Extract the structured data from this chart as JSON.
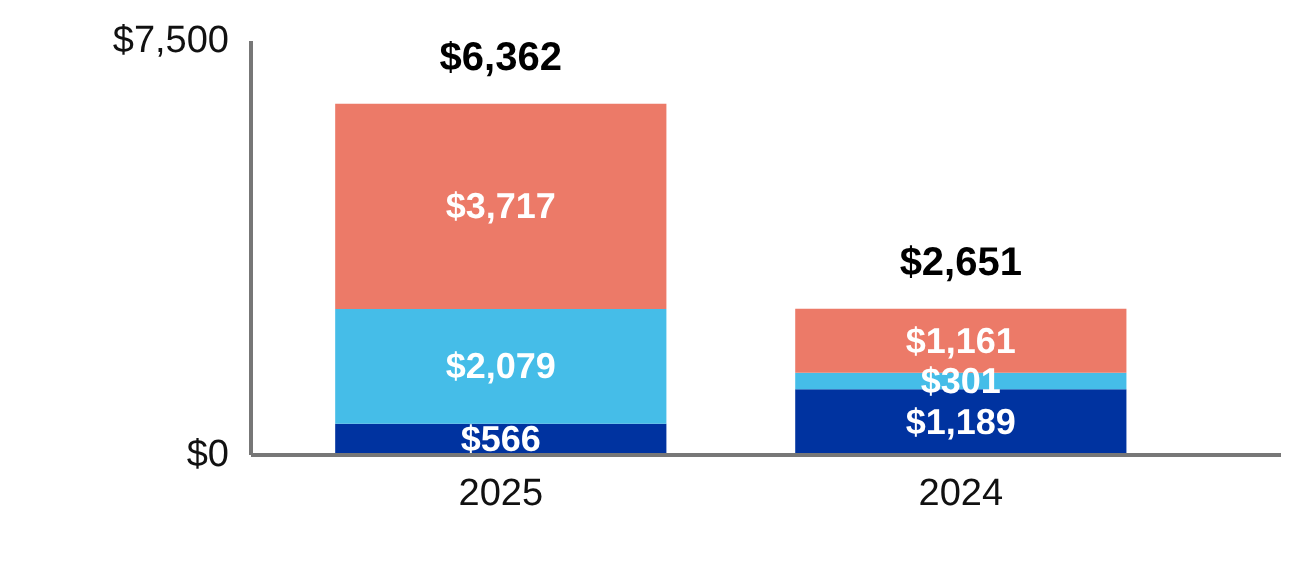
{
  "chart_data": {
    "type": "bar",
    "stacked": true,
    "categories": [
      "2025",
      "2024"
    ],
    "series": [
      {
        "color": "#0033a0",
        "values": [
          566,
          1189
        ],
        "value_labels": [
          "$566",
          "$1,189"
        ]
      },
      {
        "color": "#45bde8",
        "values": [
          2079,
          301
        ],
        "value_labels": [
          "$2,079",
          "$301"
        ]
      },
      {
        "color": "#ec7a68",
        "values": [
          3717,
          1161
        ],
        "value_labels": [
          "$3,717",
          "$1,161"
        ]
      }
    ],
    "totals": [
      "$6,362",
      "$2,651"
    ],
    "ylim": [
      0,
      7500
    ],
    "yticks": [
      {
        "value": 0,
        "label": "$0"
      },
      {
        "value": 7500,
        "label": "$7,500"
      }
    ],
    "grid": false
  }
}
